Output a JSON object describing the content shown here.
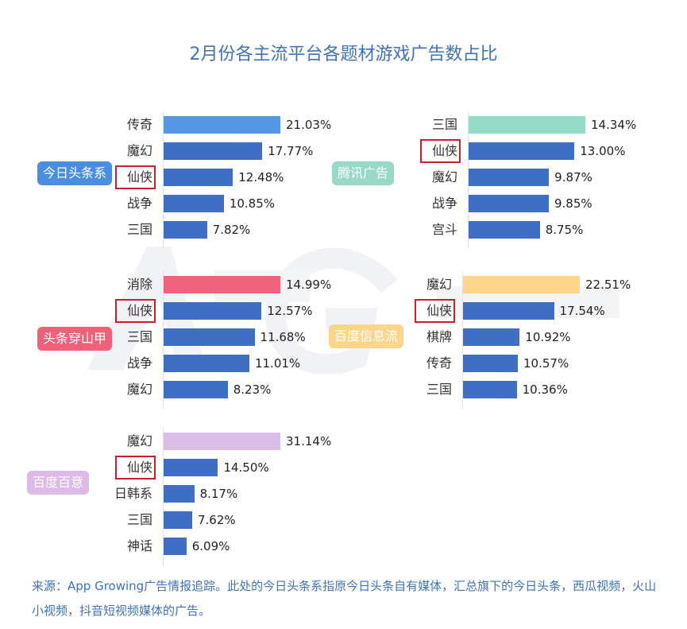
{
  "watermark": "AppGrowing",
  "chart_data": {
    "title": "2月份各主流平台各题材游戏广告数占比",
    "type": "bar",
    "highlight_category": "仙侠",
    "panels": [
      {
        "name": "今日头条系",
        "badge_color": "#4a8fdf",
        "first_color": "#5697e6",
        "color": "#3f6fc4",
        "categories": [
          "传奇",
          "魔幻",
          "仙侠",
          "战争",
          "三国"
        ],
        "values": [
          21.03,
          17.77,
          12.48,
          10.85,
          7.82
        ],
        "labels": [
          "21.03%",
          "17.77%",
          "12.48%",
          "10.85%",
          "7.82%"
        ]
      },
      {
        "name": "腾讯广告",
        "badge_color": "#95d9c6",
        "first_color": "#95dcc8",
        "color": "#3f6fc4",
        "categories": [
          "三国",
          "仙侠",
          "魔幻",
          "战争",
          "宫斗"
        ],
        "values": [
          14.34,
          13.0,
          9.87,
          9.85,
          8.75
        ],
        "labels": [
          "14.34%",
          "13.00%",
          "9.87%",
          "9.85%",
          "8.75%"
        ]
      },
      {
        "name": "头条穿山甲",
        "badge_color": "#ef6079",
        "first_color": "#f2627a",
        "color": "#3f6fc4",
        "categories": [
          "消除",
          "仙侠",
          "三国",
          "战争",
          "魔幻"
        ],
        "values": [
          14.99,
          12.57,
          11.68,
          11.01,
          8.23
        ],
        "labels": [
          "14.99%",
          "12.57%",
          "11.68%",
          "11.01%",
          "8.23%"
        ]
      },
      {
        "name": "百度信息流",
        "badge_color": "#fbd58a",
        "first_color": "#fdd68a",
        "color": "#3f6fc4",
        "categories": [
          "魔幻",
          "仙侠",
          "棋牌",
          "传奇",
          "三国"
        ],
        "values": [
          22.51,
          17.54,
          10.92,
          10.57,
          10.36
        ],
        "labels": [
          "22.51%",
          "17.54%",
          "10.92%",
          "10.57%",
          "10.36%"
        ]
      },
      {
        "name": "百度百意",
        "badge_color": "#dcb9e6",
        "first_color": "#dcbde7",
        "color": "#3f6fc4",
        "categories": [
          "魔幻",
          "仙侠",
          "日韩系",
          "三国",
          "神话"
        ],
        "values": [
          31.14,
          14.5,
          8.17,
          7.62,
          6.09
        ],
        "labels": [
          "31.14%",
          "14.50%",
          "8.17%",
          "7.62%",
          "6.09%"
        ]
      }
    ]
  },
  "source": "来源：App Growing广告情报追踪。此处的今日头条系指原今日头条自有媒体，汇总旗下的今日头条，西瓜视频，火山小视频，抖音短视频媒体的广告。"
}
